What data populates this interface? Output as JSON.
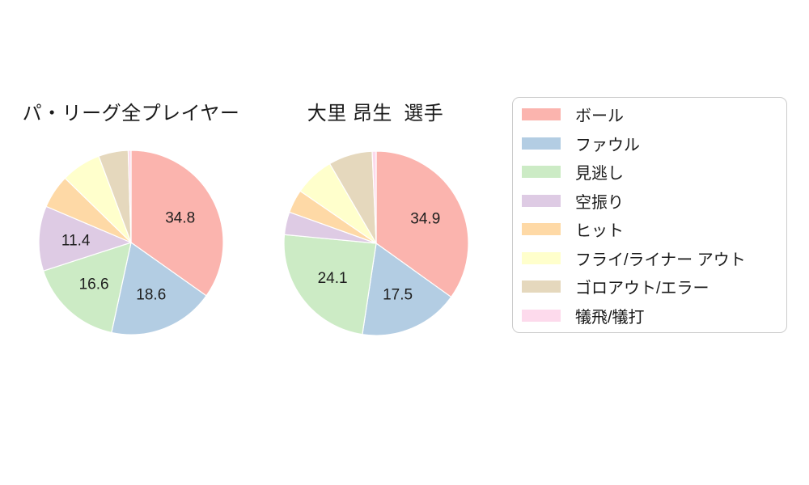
{
  "figure": {
    "background": "#ffffff",
    "text_color": "#1a1a1a"
  },
  "chart_data": [
    {
      "type": "pie",
      "title": "パ・リーグ全プレイヤー",
      "direction": "clockwise",
      "start_angle": "12-oclock",
      "label_min_pct": 10,
      "pct_label_distance": 0.6,
      "slices": [
        {
          "label": "ボール",
          "value": 34.8,
          "color": "#fbb4ae"
        },
        {
          "label": "ファウル",
          "value": 18.6,
          "color": "#b3cde3"
        },
        {
          "label": "見逃し",
          "value": 16.6,
          "color": "#ccebc5"
        },
        {
          "label": "空振り",
          "value": 11.4,
          "color": "#decbe4"
        },
        {
          "label": "ヒット",
          "value": 5.9,
          "color": "#fed9a6"
        },
        {
          "label": "フライ/ライナー アウト",
          "value": 7.0,
          "color": "#ffffcc"
        },
        {
          "label": "ゴロアウト/エラー",
          "value": 5.2,
          "color": "#e5d8bd"
        },
        {
          "label": "犠飛/犠打",
          "value": 0.5,
          "color": "#fddaec"
        }
      ]
    },
    {
      "type": "pie",
      "title": "大里 昂生  選手",
      "direction": "clockwise",
      "start_angle": "12-oclock",
      "label_min_pct": 10,
      "pct_label_distance": 0.6,
      "slices": [
        {
          "label": "ボール",
          "value": 34.9,
          "color": "#fbb4ae"
        },
        {
          "label": "ファウル",
          "value": 17.5,
          "color": "#b3cde3"
        },
        {
          "label": "見逃し",
          "value": 24.1,
          "color": "#ccebc5"
        },
        {
          "label": "空振り",
          "value": 4.0,
          "color": "#decbe4"
        },
        {
          "label": "ヒット",
          "value": 4.1,
          "color": "#fed9a6"
        },
        {
          "label": "フライ/ライナー アウト",
          "value": 7.0,
          "color": "#ffffcc"
        },
        {
          "label": "ゴロアウト/エラー",
          "value": 7.7,
          "color": "#e5d8bd"
        },
        {
          "label": "犠飛/犠打",
          "value": 0.7,
          "color": "#fddaec"
        }
      ]
    }
  ],
  "legend": {
    "position": "right",
    "border_color": "#cccccc",
    "background": "#ffffff",
    "entries": [
      {
        "label": "ボール",
        "color": "#fbb4ae"
      },
      {
        "label": "ファウル",
        "color": "#b3cde3"
      },
      {
        "label": "見逃し",
        "color": "#ccebc5"
      },
      {
        "label": "空振り",
        "color": "#decbe4"
      },
      {
        "label": "ヒット",
        "color": "#fed9a6"
      },
      {
        "label": "フライ/ライナー アウト",
        "color": "#ffffcc"
      },
      {
        "label": "ゴロアウト/エラー",
        "color": "#e5d8bd"
      },
      {
        "label": "犠飛/犠打",
        "color": "#fddaec"
      }
    ]
  }
}
